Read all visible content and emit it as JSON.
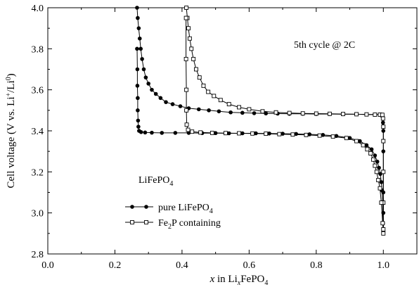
{
  "chart_data": {
    "type": "line",
    "xlabel": {
      "italic": "x",
      "pre": " in Li",
      "sub": "x",
      "post": "FePO",
      "sub2": "4"
    },
    "ylabel": {
      "a": "Cell voltage (V vs. Li",
      "sup1": "+",
      "b": "/Li",
      "sup2": "0",
      "c": ")"
    },
    "annotation_cycle": "5th cycle @ 2C",
    "annotation_material": {
      "text": "LiFePO",
      "sub": "4"
    },
    "xlim": [
      0.0,
      1.1
    ],
    "ylim": [
      2.8,
      4.0
    ],
    "x_ticks": [
      "0.0",
      "0.2",
      "0.4",
      "0.6",
      "0.8",
      "1.0"
    ],
    "x_tick_values": [
      0.0,
      0.2,
      0.4,
      0.6,
      0.8,
      1.0
    ],
    "y_ticks": [
      "2.8",
      "3.0",
      "3.2",
      "3.4",
      "3.6",
      "3.8",
      "4.0"
    ],
    "y_tick_values": [
      2.8,
      3.0,
      3.2,
      3.4,
      3.6,
      3.8,
      4.0
    ],
    "legend": [
      {
        "text": "pure LiFePO",
        "sub": "4",
        "marker": "filled-circle"
      },
      {
        "text": "Fe",
        "sub": "2",
        "post": "P containing",
        "marker": "open-square"
      }
    ],
    "series": [
      {
        "marker": "filled-circle",
        "color": "#000000",
        "x": [
          0.266,
          0.268,
          0.271,
          0.274,
          0.277,
          0.281,
          0.286,
          0.292,
          0.3,
          0.31,
          0.322,
          0.336,
          0.352,
          0.372,
          0.395,
          0.42,
          0.45,
          0.48,
          0.51,
          0.545,
          0.58,
          0.615,
          0.65,
          0.685,
          0.72,
          0.76,
          0.8,
          0.84,
          0.88,
          0.92,
          0.95,
          0.975,
          0.99,
          0.997,
          0.999,
          1.0,
          1.0,
          1.0,
          1.0,
          1.0,
          1.0,
          0.999,
          0.998,
          0.996,
          0.994,
          0.991,
          0.987,
          0.982,
          0.975,
          0.965,
          0.95,
          0.93,
          0.9,
          0.86,
          0.82,
          0.78,
          0.74,
          0.7,
          0.66,
          0.62,
          0.58,
          0.54,
          0.5,
          0.46,
          0.42,
          0.38,
          0.34,
          0.31,
          0.29,
          0.278,
          0.272,
          0.27,
          0.269,
          0.268,
          0.268,
          0.267,
          0.267,
          0.266
        ],
        "y": [
          4.0,
          3.95,
          3.9,
          3.85,
          3.8,
          3.75,
          3.7,
          3.66,
          3.63,
          3.6,
          3.58,
          3.56,
          3.54,
          3.53,
          3.52,
          3.51,
          3.505,
          3.5,
          3.495,
          3.49,
          3.488,
          3.486,
          3.485,
          3.484,
          3.483,
          3.483,
          3.482,
          3.482,
          3.481,
          3.481,
          3.48,
          3.48,
          3.48,
          3.47,
          3.44,
          3.4,
          3.3,
          3.2,
          3.1,
          3.0,
          2.9,
          2.95,
          3.05,
          3.11,
          3.15,
          3.19,
          3.22,
          3.25,
          3.28,
          3.31,
          3.33,
          3.35,
          3.365,
          3.375,
          3.38,
          3.383,
          3.385,
          3.386,
          3.387,
          3.388,
          3.388,
          3.388,
          3.389,
          3.389,
          3.39,
          3.39,
          3.39,
          3.391,
          3.392,
          3.394,
          3.4,
          3.42,
          3.45,
          3.5,
          3.56,
          3.62,
          3.7,
          3.8
        ]
      },
      {
        "marker": "open-square",
        "color": "#000000",
        "x": [
          0.413,
          0.416,
          0.419,
          0.423,
          0.428,
          0.434,
          0.442,
          0.452,
          0.464,
          0.478,
          0.495,
          0.515,
          0.54,
          0.57,
          0.6,
          0.64,
          0.68,
          0.72,
          0.76,
          0.8,
          0.84,
          0.88,
          0.92,
          0.95,
          0.975,
          0.99,
          0.997,
          0.999,
          1.0,
          1.0,
          1.0,
          1.0,
          1.0,
          1.0,
          0.998,
          0.994,
          0.99,
          0.985,
          0.98,
          0.975,
          0.97,
          0.962,
          0.952,
          0.94,
          0.92,
          0.89,
          0.85,
          0.81,
          0.77,
          0.73,
          0.69,
          0.65,
          0.61,
          0.57,
          0.53,
          0.49,
          0.455,
          0.43,
          0.418,
          0.414,
          0.413,
          0.413,
          0.412,
          0.412
        ],
        "y": [
          4.0,
          3.95,
          3.9,
          3.85,
          3.8,
          3.75,
          3.7,
          3.66,
          3.62,
          3.59,
          3.57,
          3.55,
          3.53,
          3.515,
          3.505,
          3.495,
          3.49,
          3.487,
          3.485,
          3.484,
          3.483,
          3.482,
          3.481,
          3.48,
          3.479,
          3.479,
          3.478,
          3.46,
          3.42,
          3.35,
          3.2,
          3.05,
          2.92,
          2.9,
          2.95,
          3.05,
          3.12,
          3.16,
          3.2,
          3.23,
          3.26,
          3.29,
          3.31,
          3.33,
          3.35,
          3.365,
          3.372,
          3.377,
          3.38,
          3.382,
          3.384,
          3.386,
          3.387,
          3.388,
          3.389,
          3.39,
          3.392,
          3.396,
          3.405,
          3.43,
          3.5,
          3.6,
          3.75,
          3.95
        ]
      }
    ]
  }
}
